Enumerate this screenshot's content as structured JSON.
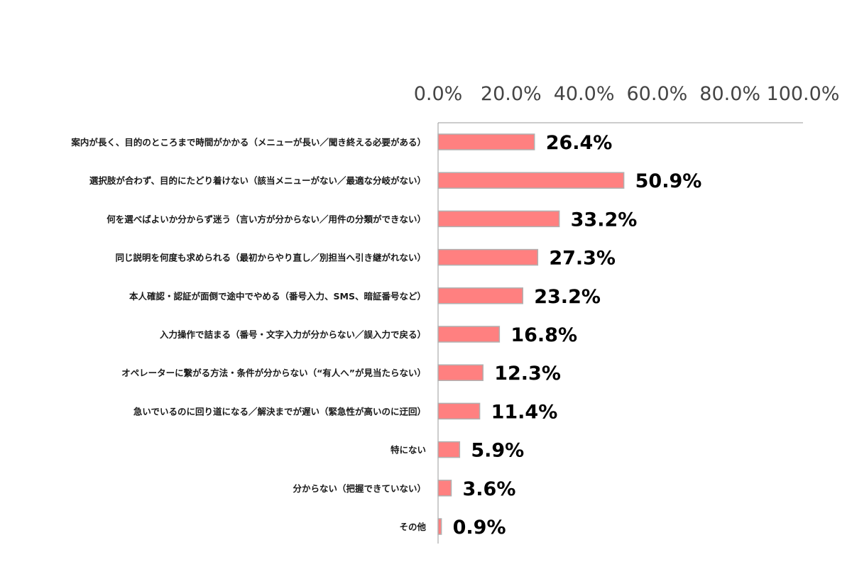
{
  "chart_data": {
    "type": "bar",
    "orientation": "horizontal",
    "categories": [
      "案内が長く、目的のところまで時間がかかる（メニューが長い／聞き終える必要がある）",
      "選択肢が合わず、目的にたどり着けない（該当メニューがない／最適な分岐がない）",
      "何を選べばよいか分からず迷う（言い方が分からない／用件の分類ができない）",
      "同じ説明を何度も求められる（最初からやり直し／別担当へ引き継がれない）",
      "本人確認・認証が面倒で途中でやめる（番号入力、SMS、暗証番号など）",
      "入力操作で詰まる（番号・文字入力が分からない／誤入力で戻る）",
      "オペレーターに繋がる方法・条件が分からない（“有人へ”が見当たらない）",
      "急いでいるのに回り道になる／解決までが遅い（緊急性が高いのに迂回）",
      "特にない",
      "分からない（把握できていない）",
      "その他"
    ],
    "values": [
      26.4,
      50.9,
      33.2,
      27.3,
      23.2,
      16.8,
      12.3,
      11.4,
      5.9,
      3.6,
      0.9
    ],
    "value_labels": [
      "26.4%",
      "50.9%",
      "33.2%",
      "27.3%",
      "23.2%",
      "16.8%",
      "12.3%",
      "11.4%",
      "5.9%",
      "3.6%",
      "0.9%"
    ],
    "x_ticks": [
      "0.0%",
      "20.0%",
      "40.0%",
      "60.0%",
      "80.0%",
      "100.0%"
    ],
    "xlim": [
      0,
      100
    ],
    "axis_position": "top",
    "grid": false,
    "bar_color": "#ff8080",
    "bar_border_color": "#b0b0b0"
  }
}
